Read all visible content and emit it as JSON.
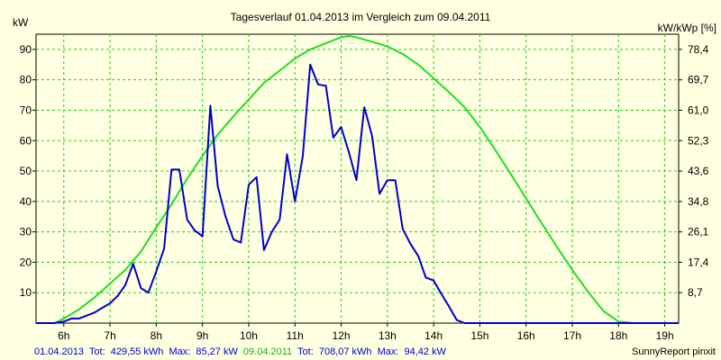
{
  "chart_data": {
    "type": "line",
    "title": "Tagesverlauf 01.04.2013 im Vergleich zum 09.04.2011",
    "ylabel": "kW",
    "y2label": "kW/kWp [%]",
    "xlabel": "",
    "xlim": [
      5.4,
      19.3
    ],
    "ylim": [
      0,
      95
    ],
    "x_ticks": [
      6,
      7,
      8,
      9,
      10,
      11,
      12,
      13,
      14,
      15,
      16,
      17,
      18,
      19
    ],
    "x_tick_labels": [
      "6h",
      "7h",
      "8h",
      "9h",
      "10h",
      "11h",
      "12h",
      "13h",
      "14h",
      "15h",
      "16h",
      "17h",
      "18h",
      "19h"
    ],
    "y_ticks": [
      10,
      20,
      30,
      40,
      50,
      60,
      70,
      80,
      90
    ],
    "y_tick_labels": [
      "10",
      "20",
      "30",
      "40",
      "50",
      "60",
      "70",
      "80",
      "90"
    ],
    "y2_ticks": [
      10,
      20,
      30,
      40,
      50,
      60,
      70,
      80,
      90
    ],
    "y2_tick_labels": [
      "8,7",
      "17,4",
      "26,1",
      "34,8",
      "43,6",
      "52,3",
      "61,0",
      "69,7",
      "78,4"
    ],
    "grid": true,
    "series": [
      {
        "name": "01.04.2013",
        "color": "#0000cc",
        "x": [
          5.4,
          5.8,
          6.0,
          6.17,
          6.33,
          6.5,
          6.67,
          6.83,
          7.0,
          7.17,
          7.33,
          7.5,
          7.67,
          7.83,
          8.0,
          8.17,
          8.33,
          8.5,
          8.67,
          8.83,
          9.0,
          9.17,
          9.33,
          9.5,
          9.67,
          9.83,
          10.0,
          10.17,
          10.33,
          10.5,
          10.67,
          10.83,
          11.0,
          11.17,
          11.33,
          11.5,
          11.67,
          11.83,
          12.0,
          12.17,
          12.33,
          12.5,
          12.67,
          12.83,
          13.0,
          13.17,
          13.33,
          13.5,
          13.67,
          13.83,
          14.0,
          14.17,
          14.33,
          14.5,
          14.67,
          14.83,
          15.0,
          15.17,
          15.33,
          15.5,
          15.67,
          15.83,
          16.0,
          16.17,
          16.33,
          16.5,
          16.67,
          16.83,
          17.0,
          17.17,
          17.33,
          17.5,
          17.67,
          17.83,
          18.0,
          18.17,
          18.33,
          18.5,
          18.67,
          18.83,
          19.0,
          19.3
        ],
        "y": [
          0,
          0,
          0.5,
          1.5,
          1.5,
          2.5,
          3.5,
          5,
          6.5,
          9,
          12.5,
          19.5,
          11.5,
          10,
          17,
          24.5,
          50.5,
          50.5,
          34,
          30.5,
          28.5,
          71.5,
          45,
          35,
          27.5,
          26.5,
          45.5,
          48,
          24,
          30,
          34,
          55.5,
          40,
          55,
          85,
          78.5,
          78,
          61,
          64.5,
          56,
          47,
          71,
          61.5,
          42.5,
          47,
          47,
          31,
          26,
          22,
          15,
          14,
          9.5,
          5.5,
          1,
          0,
          0,
          0,
          0,
          0,
          0,
          0,
          0,
          0,
          0,
          0,
          0,
          0,
          0,
          0,
          0,
          0,
          0,
          0,
          0,
          0,
          0,
          0,
          0,
          0,
          0,
          0,
          0
        ]
      },
      {
        "name": "09.04.2011",
        "color": "#22dd22",
        "x": [
          5.4,
          5.8,
          6.0,
          6.33,
          6.67,
          7.0,
          7.33,
          7.67,
          8.0,
          8.33,
          8.67,
          9.0,
          9.33,
          9.67,
          10.0,
          10.33,
          10.67,
          11.0,
          11.33,
          11.67,
          12.0,
          12.17,
          12.33,
          12.67,
          13.0,
          13.33,
          13.67,
          14.0,
          14.33,
          14.67,
          15.0,
          15.33,
          15.67,
          16.0,
          16.33,
          16.67,
          17.0,
          17.33,
          17.67,
          18.0,
          18.33,
          18.6,
          19.0,
          19.3
        ],
        "y": [
          0,
          0,
          1.5,
          4.5,
          8.5,
          13,
          17.5,
          23.5,
          31.5,
          39,
          47.5,
          55,
          62,
          68,
          73.5,
          79,
          83,
          87,
          90,
          92,
          94,
          94.4,
          94,
          92.5,
          91,
          88.5,
          85,
          80.5,
          76,
          71,
          64.5,
          57,
          49,
          41,
          33,
          25,
          17.5,
          10.5,
          4,
          0.5,
          0,
          0,
          0,
          0
        ]
      }
    ]
  },
  "footer": {
    "series1_name": "01.04.2013",
    "series1_tot_label": "Tot:",
    "series1_tot_value": "429,55 kWh",
    "series1_max_label": "Max:",
    "series1_max_value": "85,27 kW",
    "series2_name": "09.04.2011",
    "series2_tot_label": "Tot:",
    "series2_tot_value": "708,07 kWh",
    "series2_max_label": "Max:",
    "series2_max_value": "94,42 kW",
    "credit": "SunnyReport pinxit"
  }
}
